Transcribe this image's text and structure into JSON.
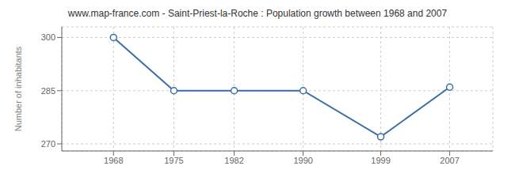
{
  "chart_data": {
    "type": "line",
    "title": "www.map-france.com - Saint-Priest-la-Roche : Population growth between 1968 and 2007",
    "ylabel": "Number of inhabitants",
    "x": [
      1968,
      1975,
      1982,
      1990,
      1999,
      2007
    ],
    "values": [
      300,
      285,
      285,
      285,
      272,
      286
    ],
    "color": "#3a6ea5",
    "marker": "circle",
    "xlim": [
      1962,
      2012
    ],
    "ylim": [
      268,
      303
    ],
    "xticks": [
      1968,
      1975,
      1982,
      1990,
      1999,
      2007
    ],
    "yticks": [
      270,
      285,
      300
    ],
    "grid": true
  }
}
